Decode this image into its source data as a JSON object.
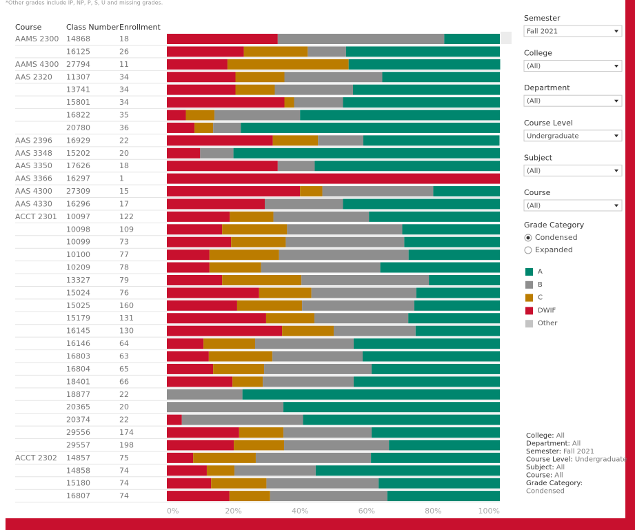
{
  "footnote": "*Other grades include IP, NP, P, S, U and missing grades.",
  "chart_data": {
    "type": "bar",
    "orientation": "horizontal",
    "stacked": true,
    "column_headers": [
      "Course",
      "Class Number",
      "Enrollment"
    ],
    "courses": [
      "AAMS 2300",
      null,
      "AAMS 4300",
      "AAS 2320",
      null,
      null,
      null,
      null,
      "AAS 2396",
      "AAS 3348",
      "AAS 3350",
      "AAS 3366",
      "AAS 4300",
      "AAS 4330",
      "ACCT 2301",
      null,
      null,
      null,
      null,
      null,
      null,
      null,
      null,
      null,
      null,
      null,
      null,
      null,
      null,
      null,
      null,
      null,
      null,
      "ACCT 2302",
      null,
      null,
      null
    ],
    "categories": [
      "14868",
      "16125",
      "27794",
      "11307",
      "13741",
      "15801",
      "16822",
      "20780",
      "16929",
      "15202",
      "17626",
      "16297",
      "27309",
      "16296",
      "10097",
      "10098",
      "10099",
      "10100",
      "10209",
      "13327",
      "15024",
      "15025",
      "15179",
      "16145",
      "16146",
      "16803",
      "16804",
      "18401",
      "18877",
      "20365",
      "20374",
      "29556",
      "29557",
      "14857",
      "14858",
      "15180",
      "16807"
    ],
    "enrollment": [
      18,
      26,
      11,
      34,
      34,
      34,
      35,
      36,
      22,
      20,
      18,
      1,
      15,
      17,
      122,
      109,
      73,
      77,
      78,
      79,
      76,
      160,
      131,
      130,
      64,
      63,
      65,
      66,
      22,
      20,
      22,
      174,
      198,
      75,
      74,
      74,
      74
    ],
    "series": [
      {
        "name": "A",
        "color": "#00866e",
        "values": [
          16.7,
          46.2,
          45.5,
          35.3,
          44.1,
          47.1,
          60,
          77.8,
          40.9,
          80,
          55.6,
          0,
          20,
          47.1,
          39.3,
          29.3,
          28.7,
          27.4,
          35.9,
          21.3,
          25.1,
          25.7,
          27.5,
          25.3,
          43.9,
          41.2,
          38.5,
          43.9,
          77.3,
          65,
          59.1,
          38.5,
          33.3,
          38.7,
          55.3,
          36.4,
          33.8
        ]
      },
      {
        "name": "B",
        "color": "#8e8e8e",
        "values": [
          50,
          11.5,
          0,
          29.4,
          23.5,
          14.7,
          25.7,
          8.3,
          13.6,
          10,
          11.1,
          0,
          33.3,
          23.5,
          28.7,
          34.6,
          35.6,
          38.9,
          35.8,
          38.3,
          31.5,
          33.7,
          28.2,
          24.6,
          29.6,
          27.1,
          32.3,
          27.3,
          22.7,
          35,
          36.4,
          26.5,
          31.5,
          34.6,
          24.4,
          33.7,
          35.2
        ]
      },
      {
        "name": "C",
        "color": "#bb7c00",
        "values": [
          0,
          19.2,
          36.4,
          14.7,
          11.8,
          2.9,
          8.6,
          5.6,
          13.6,
          0,
          0,
          0,
          6.7,
          0,
          13.1,
          19.5,
          16.4,
          20.9,
          15.5,
          23.8,
          15.7,
          19.5,
          14.5,
          15.5,
          15.5,
          19.1,
          15.3,
          9.1,
          0,
          0,
          0,
          13.3,
          15.1,
          18.8,
          8.3,
          16.6,
          12.2
        ]
      },
      {
        "name": "DWIF",
        "color": "#c8102e",
        "values": [
          33.3,
          23.1,
          18.2,
          20.6,
          20.6,
          35.3,
          5.7,
          8.3,
          31.8,
          10,
          33.3,
          100,
          40,
          29.4,
          18.9,
          16.6,
          19.3,
          12.8,
          12.8,
          16.6,
          27.7,
          21.1,
          29.8,
          34.6,
          11,
          12.6,
          13.9,
          19.7,
          0,
          0,
          4.5,
          21.7,
          20.1,
          7.9,
          12,
          13.3,
          18.8
        ]
      },
      {
        "name": "Other",
        "color": "#c4c4c4",
        "values": [
          0,
          0,
          0,
          0,
          0,
          0,
          0,
          0,
          0,
          0,
          0,
          0,
          0,
          0,
          0,
          0,
          0,
          0,
          0,
          0,
          0,
          0,
          0,
          0,
          0,
          0,
          0,
          0,
          0,
          0,
          0,
          0,
          0,
          0,
          0,
          0,
          0
        ]
      }
    ],
    "xlim": [
      0,
      100
    ],
    "xticks": [
      {
        "value": 0,
        "label": "0%"
      },
      {
        "value": 20,
        "label": "20%"
      },
      {
        "value": 40,
        "label": "40%"
      },
      {
        "value": 60,
        "label": "60%"
      },
      {
        "value": 80,
        "label": "80%"
      },
      {
        "value": 100,
        "label": "100%"
      }
    ]
  },
  "filters": [
    {
      "label": "Semester",
      "value": "Fall 2021"
    },
    {
      "label": "College",
      "value": "(All)"
    },
    {
      "label": "Department",
      "value": "(All)"
    },
    {
      "label": "Course Level",
      "value": "Undergraduate"
    },
    {
      "label": "Subject",
      "value": "(All)"
    },
    {
      "label": "Course",
      "value": "(All)"
    }
  ],
  "grade_category": {
    "label": "Grade Category",
    "options": [
      "Condensed",
      "Expanded"
    ],
    "selected": "Condensed"
  },
  "summary": [
    {
      "label": "College:",
      "value": "All"
    },
    {
      "label": "Department:",
      "value": "All"
    },
    {
      "label": "Semester:",
      "value": "Fall 2021"
    },
    {
      "label": "Course Level:",
      "value": "Undergraduate"
    },
    {
      "label": "Subject:",
      "value": "All"
    },
    {
      "label": "Course:",
      "value": "All"
    },
    {
      "label": "Grade Category:",
      "value": "Condensed"
    }
  ]
}
